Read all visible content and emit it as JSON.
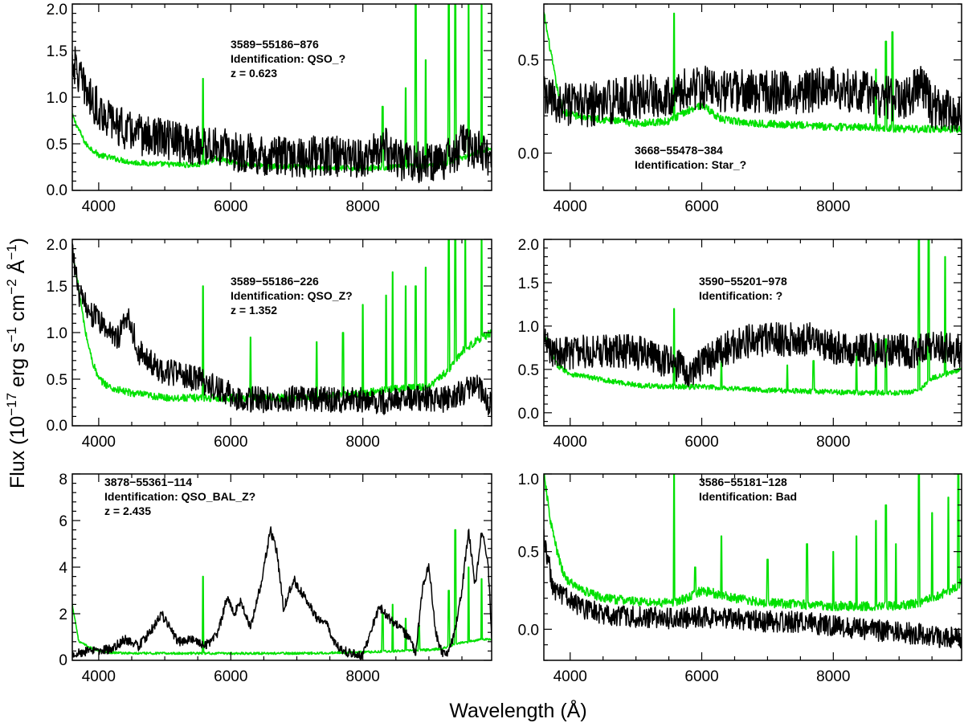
{
  "figure": {
    "ylabel_parts": {
      "pre": "Flux (10",
      "exp1": "−17",
      "mid1": " erg s",
      "exp2": "−1",
      "mid2": " cm",
      "exp3": "−2",
      "mid3": " Å",
      "exp4": "−1",
      "post": ")"
    },
    "xlabel": "Wavelength (Å)"
  },
  "colors": {
    "object": "#000000",
    "noise": "#00e000"
  },
  "chart_data": [
    {
      "type": "line",
      "id": "p1",
      "annotations": [
        "3589−55186−876",
        "Identification: QSO_?",
        "z = 0.623"
      ],
      "xlim": [
        3600,
        9950
      ],
      "ylim": [
        0,
        2
      ],
      "xticks": [
        4000,
        6000,
        8000
      ],
      "xtick_labels": [
        "4000",
        "6000",
        "8000"
      ],
      "yticks": [
        0,
        0.5,
        1,
        1.5,
        2
      ],
      "ytick_labels": [
        "0.0",
        "0.5",
        "1.0",
        "1.5",
        "2.0"
      ],
      "series": [
        {
          "name": "spectrum",
          "color": "#000000",
          "x": [
            3600,
            3750,
            3900,
            4100,
            4400,
            4700,
            5000,
            5300,
            5600,
            5900,
            6200,
            6500,
            6800,
            7100,
            7400,
            7700,
            8000,
            8200,
            8350,
            8500,
            8800,
            9100,
            9350,
            9500,
            9700,
            9950
          ],
          "y": [
            1.4,
            1.15,
            0.95,
            0.8,
            0.65,
            0.58,
            0.55,
            0.5,
            0.48,
            0.45,
            0.4,
            0.38,
            0.36,
            0.35,
            0.38,
            0.36,
            0.35,
            0.4,
            0.45,
            0.33,
            0.3,
            0.3,
            0.35,
            0.5,
            0.45,
            0.35
          ],
          "noise": 0.22
        },
        {
          "name": "error",
          "color": "#00e000",
          "x": [
            3600,
            3800,
            4000,
            4500,
            5000,
            5500,
            5800,
            6000,
            6500,
            7000,
            7500,
            8000,
            8500,
            8800,
            9100,
            9300,
            9500,
            9700,
            9950
          ],
          "y": [
            0.8,
            0.5,
            0.38,
            0.3,
            0.28,
            0.27,
            0.35,
            0.3,
            0.26,
            0.25,
            0.24,
            0.24,
            0.25,
            0.26,
            0.27,
            0.3,
            0.35,
            0.4,
            0.45
          ],
          "noise": 0.03,
          "spikes": [
            [
              5577,
              1.2
            ],
            [
              8300,
              0.9
            ],
            [
              8650,
              1.1
            ],
            [
              8800,
              2.0
            ],
            [
              8950,
              1.4
            ],
            [
              9300,
              2.0
            ],
            [
              9400,
              2.0
            ],
            [
              9600,
              2.0
            ],
            [
              9800,
              2.0
            ]
          ]
        }
      ]
    },
    {
      "type": "line",
      "id": "p2",
      "annotations": [
        "3668−55478−384",
        "Identification: Star_?"
      ],
      "xlim": [
        3600,
        9950
      ],
      "ylim": [
        -0.2,
        0.8
      ],
      "xticks": [
        4000,
        6000,
        8000
      ],
      "xtick_labels": [
        "4000",
        "6000",
        "8000"
      ],
      "yticks": [
        0,
        0.5
      ],
      "ytick_labels": [
        "0.0",
        "0.5"
      ],
      "series": [
        {
          "name": "spectrum",
          "color": "#000000",
          "x": [
            3600,
            3800,
            4000,
            4500,
            5000,
            5500,
            6000,
            6500,
            7000,
            7500,
            8000,
            8500,
            9000,
            9350,
            9500,
            9950
          ],
          "y": [
            0.3,
            0.27,
            0.25,
            0.27,
            0.3,
            0.32,
            0.35,
            0.33,
            0.33,
            0.33,
            0.35,
            0.33,
            0.28,
            0.35,
            0.25,
            0.22
          ],
          "noise": 0.12
        },
        {
          "name": "error",
          "color": "#00e000",
          "x": [
            3600,
            3700,
            3800,
            3900,
            4100,
            4500,
            5000,
            5500,
            5800,
            6000,
            6300,
            6800,
            7500,
            8000,
            8500,
            9000,
            9300
          ],
          "y": [
            0.75,
            0.55,
            0.35,
            0.22,
            0.2,
            0.18,
            0.16,
            0.17,
            0.23,
            0.26,
            0.18,
            0.16,
            0.15,
            0.14,
            0.14,
            0.13,
            0.13
          ],
          "noise": 0.02,
          "spikes": [
            [
              5577,
              0.75
            ],
            [
              8650,
              0.45
            ],
            [
              8800,
              0.6
            ],
            [
              8900,
              0.65
            ]
          ]
        }
      ]
    },
    {
      "type": "line",
      "id": "p3",
      "annotations": [
        "3589−55186−226",
        "Identification: QSO_Z?",
        "z = 1.352"
      ],
      "xlim": [
        3600,
        9950
      ],
      "ylim": [
        0,
        2
      ],
      "xticks": [
        4000,
        6000,
        8000
      ],
      "xtick_labels": [
        "4000",
        "6000",
        "8000"
      ],
      "yticks": [
        0,
        0.5,
        1,
        1.5,
        2
      ],
      "ytick_labels": [
        "0.0",
        "0.5",
        "1.0",
        "1.5",
        "2.0"
      ],
      "series": [
        {
          "name": "spectrum",
          "color": "#000000",
          "x": [
            3600,
            3700,
            3800,
            3900,
            4100,
            4300,
            4450,
            4600,
            4900,
            5200,
            5500,
            5800,
            6100,
            6400,
            6700,
            7000,
            7300,
            7600,
            8000,
            8300,
            8600,
            8900,
            9200,
            9500,
            9700,
            9950
          ],
          "y": [
            1.9,
            1.4,
            1.3,
            1.2,
            1.05,
            0.95,
            1.2,
            0.8,
            0.6,
            0.55,
            0.5,
            0.4,
            0.3,
            0.28,
            0.28,
            0.3,
            0.28,
            0.28,
            0.28,
            0.25,
            0.28,
            0.3,
            0.28,
            0.35,
            0.45,
            0.2
          ],
          "noise": 0.14
        },
        {
          "name": "error",
          "color": "#00e000",
          "x": [
            3600,
            3800,
            3900,
            4000,
            4200,
            4500,
            5000,
            5500,
            6000,
            6500,
            7000,
            7500,
            8000,
            8500,
            9000,
            9300,
            9500,
            9700,
            9950
          ],
          "y": [
            1.9,
            1.0,
            0.7,
            0.5,
            0.4,
            0.35,
            0.3,
            0.3,
            0.3,
            0.3,
            0.3,
            0.32,
            0.35,
            0.4,
            0.42,
            0.6,
            0.8,
            0.9,
            1.0
          ],
          "noise": 0.04,
          "spikes": [
            [
              5577,
              1.5
            ],
            [
              6300,
              0.95
            ],
            [
              7300,
              0.9
            ],
            [
              7700,
              1.0
            ],
            [
              8000,
              1.3
            ],
            [
              8350,
              1.4
            ],
            [
              8450,
              1.65
            ],
            [
              8650,
              1.5
            ],
            [
              8800,
              1.5
            ],
            [
              8950,
              1.7
            ],
            [
              9300,
              2.0
            ],
            [
              9400,
              2.0
            ],
            [
              9550,
              2.0
            ],
            [
              9800,
              2.0
            ]
          ]
        }
      ]
    },
    {
      "type": "line",
      "id": "p4",
      "annotations": [
        "3590−55201−978",
        "Identification: ?"
      ],
      "xlim": [
        3600,
        9950
      ],
      "ylim": [
        -0.15,
        2
      ],
      "xticks": [
        4000,
        6000,
        8000
      ],
      "xtick_labels": [
        "4000",
        "6000",
        "8000"
      ],
      "yticks": [
        0,
        0.5,
        1,
        1.5,
        2
      ],
      "ytick_labels": [
        "0.0",
        "0.5",
        "1.0",
        "1.5",
        "2.0"
      ],
      "series": [
        {
          "name": "spectrum",
          "color": "#000000",
          "x": [
            3600,
            3800,
            4000,
            4500,
            5000,
            5400,
            5800,
            6000,
            6400,
            6800,
            7200,
            7600,
            8000,
            8500,
            9000,
            9300,
            9500,
            9950
          ],
          "y": [
            0.8,
            0.7,
            0.7,
            0.72,
            0.7,
            0.6,
            0.5,
            0.55,
            0.75,
            0.85,
            0.85,
            0.85,
            0.75,
            0.72,
            0.72,
            0.7,
            0.8,
            0.7
          ],
          "noise": 0.2
        },
        {
          "name": "error",
          "color": "#00e000",
          "x": [
            3600,
            3800,
            4000,
            4500,
            5000,
            5500,
            6000,
            6500,
            7000,
            7500,
            8000,
            8500,
            9000,
            9300,
            9500,
            9950
          ],
          "y": [
            0.9,
            0.55,
            0.45,
            0.38,
            0.32,
            0.3,
            0.3,
            0.28,
            0.26,
            0.25,
            0.24,
            0.23,
            0.23,
            0.25,
            0.4,
            0.5
          ],
          "noise": 0.03,
          "spikes": [
            [
              5577,
              1.2
            ],
            [
              6300,
              0.6
            ],
            [
              7300,
              0.55
            ],
            [
              7700,
              0.6
            ],
            [
              8350,
              0.7
            ],
            [
              8650,
              0.8
            ],
            [
              8800,
              0.85
            ],
            [
              9300,
              2.0
            ],
            [
              9450,
              2.0
            ],
            [
              9700,
              1.8
            ]
          ]
        }
      ]
    },
    {
      "type": "line",
      "id": "p5",
      "annotations": [
        "3878−55361−114",
        "Identification: QSO_BAL_Z?",
        "z = 2.435"
      ],
      "xlim": [
        3600,
        9950
      ],
      "ylim": [
        0,
        8
      ],
      "xticks": [
        4000,
        6000,
        8000
      ],
      "xtick_labels": [
        "4000",
        "6000",
        "8000"
      ],
      "yticks": [
        0,
        2,
        4,
        6,
        8
      ],
      "ytick_labels": [
        "0",
        "2",
        "4",
        "6",
        "8"
      ],
      "series": [
        {
          "name": "spectrum",
          "color": "#000000",
          "x": [
            3600,
            3900,
            4200,
            4400,
            4600,
            4800,
            4950,
            5050,
            5200,
            5400,
            5600,
            5800,
            5950,
            6050,
            6150,
            6300,
            6450,
            6600,
            6700,
            6800,
            6950,
            7050,
            7150,
            7300,
            7450,
            7600,
            7800,
            8000,
            8150,
            8250,
            8400,
            8550,
            8700,
            8800,
            8900,
            9000,
            9100,
            9200,
            9300,
            9400,
            9500,
            9600,
            9700,
            9800,
            9900,
            9950
          ],
          "y": [
            0.3,
            0.4,
            0.5,
            0.9,
            0.6,
            1.3,
            2.0,
            1.5,
            0.8,
            0.9,
            0.6,
            1.1,
            2.8,
            2.0,
            2.5,
            1.4,
            3.2,
            5.6,
            4.6,
            2.2,
            3.5,
            3.0,
            2.6,
            1.8,
            1.6,
            0.6,
            0.3,
            0.2,
            1.5,
            2.3,
            1.8,
            1.4,
            1.0,
            0.3,
            3.0,
            4.1,
            1.2,
            0.3,
            0.3,
            1.3,
            3.0,
            5.6,
            3.2,
            5.6,
            4.0,
            1.0
          ],
          "noise": 0.2
        },
        {
          "name": "error",
          "color": "#00e000",
          "x": [
            3600,
            3700,
            3900,
            4100,
            4500,
            5000,
            5500,
            6000,
            6500,
            7000,
            7500,
            8000,
            8500,
            9000,
            9200,
            9400,
            9600,
            9800,
            9950
          ],
          "y": [
            2.4,
            0.8,
            0.5,
            0.35,
            0.3,
            0.3,
            0.3,
            0.3,
            0.3,
            0.3,
            0.32,
            0.35,
            0.4,
            0.45,
            0.5,
            0.7,
            0.8,
            0.9,
            0.9
          ],
          "noise": 0.05,
          "spikes": [
            [
              5577,
              3.6
            ],
            [
              8300,
              2.0
            ],
            [
              8450,
              2.4
            ],
            [
              8650,
              1.8
            ],
            [
              8850,
              1.5
            ],
            [
              9300,
              3.0
            ],
            [
              9400,
              5.6
            ],
            [
              9600,
              4.0
            ],
            [
              9800,
              3.5
            ]
          ]
        }
      ]
    },
    {
      "type": "line",
      "id": "p6",
      "annotations": [
        "3586−55181−128",
        "Identification: Bad"
      ],
      "xlim": [
        3600,
        9950
      ],
      "ylim": [
        -0.2,
        1
      ],
      "xticks": [
        4000,
        6000,
        8000
      ],
      "xtick_labels": [
        "4000",
        "6000",
        "8000"
      ],
      "yticks": [
        0,
        0.5,
        1
      ],
      "ytick_labels": [
        "0.0",
        "0.5",
        "1.0"
      ],
      "series": [
        {
          "name": "spectrum",
          "color": "#000000",
          "x": [
            3600,
            3750,
            3900,
            4100,
            4500,
            5000,
            5500,
            6000,
            6500,
            7000,
            7500,
            8000,
            8500,
            9000,
            9300,
            9500,
            9950
          ],
          "y": [
            0.6,
            0.25,
            0.22,
            0.15,
            0.1,
            0.08,
            0.07,
            0.08,
            0.07,
            0.05,
            0.05,
            0.02,
            0.0,
            -0.02,
            -0.03,
            -0.05,
            -0.05
          ],
          "noise": 0.07
        },
        {
          "name": "error",
          "color": "#00e000",
          "x": [
            3600,
            3700,
            3800,
            3900,
            4000,
            4200,
            4500,
            5000,
            5500,
            5800,
            6000,
            6500,
            7000,
            7500,
            8000,
            8500,
            9000,
            9300,
            9500,
            9800,
            9950
          ],
          "y": [
            1.0,
            0.7,
            0.5,
            0.35,
            0.3,
            0.25,
            0.2,
            0.18,
            0.17,
            0.2,
            0.25,
            0.2,
            0.17,
            0.16,
            0.15,
            0.15,
            0.15,
            0.17,
            0.2,
            0.25,
            0.3
          ],
          "noise": 0.03,
          "spikes": [
            [
              5577,
              1.0
            ],
            [
              5900,
              0.4
            ],
            [
              6300,
              0.6
            ],
            [
              7000,
              0.45
            ],
            [
              7600,
              0.55
            ],
            [
              8000,
              0.5
            ],
            [
              8350,
              0.6
            ],
            [
              8650,
              0.7
            ],
            [
              8800,
              0.8
            ],
            [
              8950,
              0.55
            ],
            [
              9300,
              1.0
            ],
            [
              9500,
              0.75
            ],
            [
              9750,
              0.85
            ],
            [
              9900,
              1.0
            ]
          ]
        }
      ]
    }
  ]
}
